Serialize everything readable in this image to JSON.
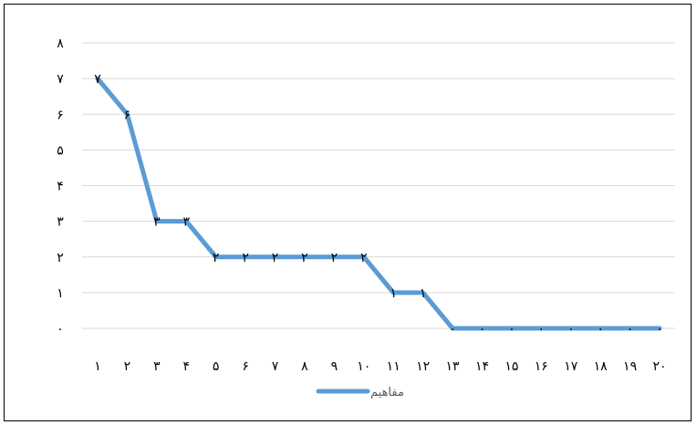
{
  "chart_data": {
    "type": "line",
    "categories": [
      "۱",
      "۲",
      "۳",
      "۴",
      "۵",
      "۶",
      "۷",
      "۸",
      "۹",
      "۱۰",
      "۱۱",
      "۱۲",
      "۱۳",
      "۱۴",
      "۱۵",
      "۱۶",
      "۱۷",
      "۱۸",
      "۱۹",
      "۲۰"
    ],
    "series": [
      {
        "name": "مفاهیم",
        "values": [
          7,
          6,
          3,
          3,
          2,
          2,
          2,
          2,
          2,
          2,
          1,
          1,
          0,
          0,
          0,
          0,
          0,
          0,
          0,
          0
        ]
      }
    ],
    "data_labels": [
      "۷",
      "۶",
      "۳",
      "۳",
      "۲",
      "۲",
      "۲",
      "۲",
      "۲",
      "۲",
      "۱",
      "۱",
      "۰",
      "۰",
      "۰",
      "۰",
      "۰",
      "۰",
      "۰",
      "۰"
    ],
    "y_tick_labels": [
      "۰",
      "۱",
      "۲",
      "۳",
      "۴",
      "۵",
      "۶",
      "۷",
      "۸"
    ],
    "ylim": [
      0,
      8
    ],
    "grid": true,
    "legend_position": "bottom",
    "line_color": "#5b9bd5",
    "grid_color": "#d9d9d9"
  }
}
